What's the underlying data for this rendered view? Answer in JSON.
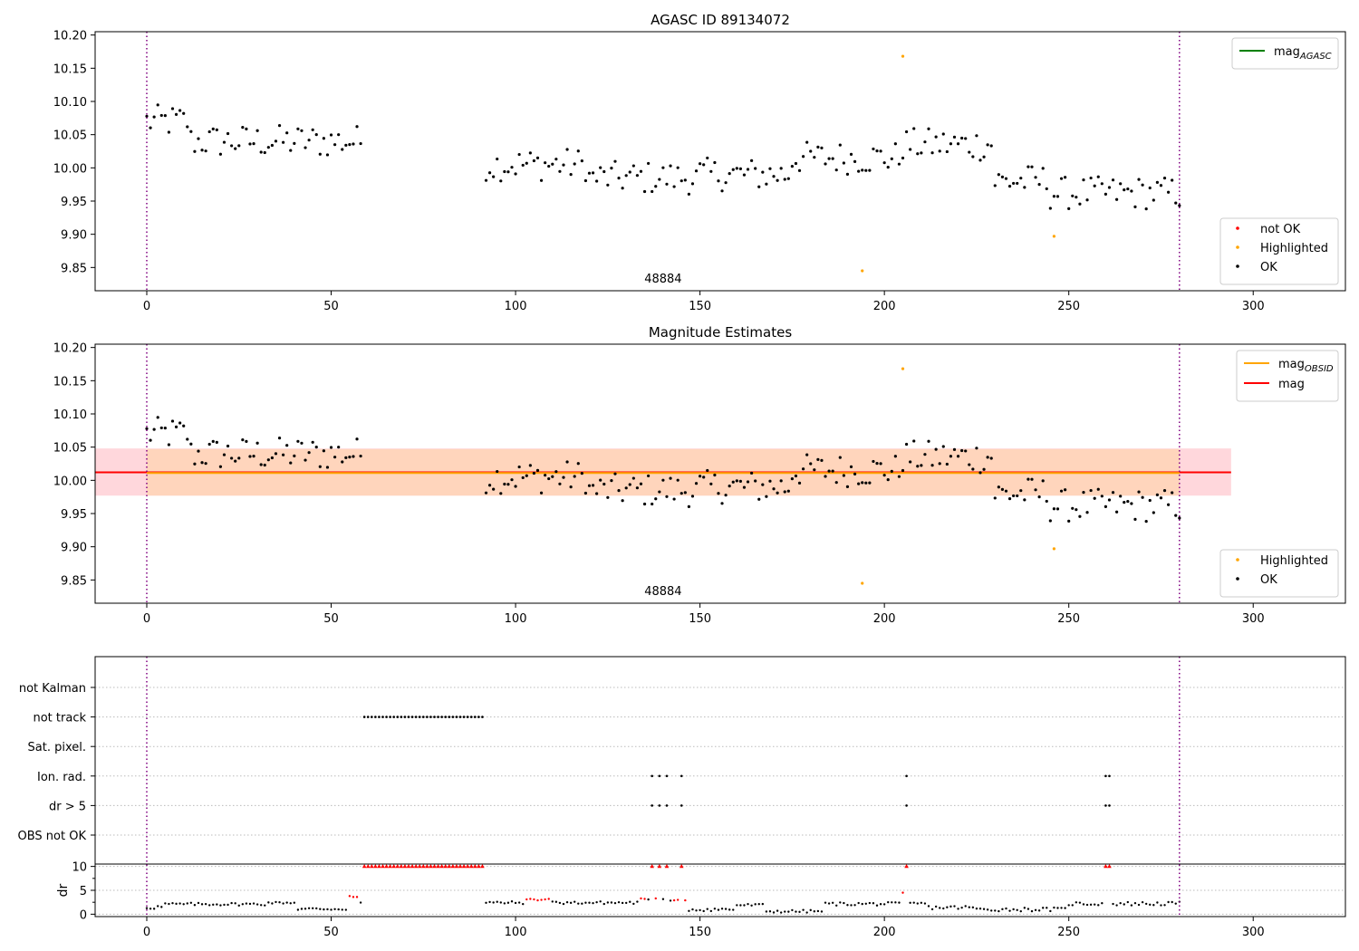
{
  "colors": {
    "ok": "#000000",
    "not_ok": "#ff0000",
    "highlighted": "#ffa500",
    "mag_agasc": "#008000",
    "mag_obsid": "#ffa500",
    "mag": "#ff0000",
    "band_outer": "#ffd7dc",
    "band_inner": "#ffd5bc",
    "boundary": "#800080",
    "grid": "#bbbbbb"
  },
  "chart_data": [
    {
      "type": "scatter",
      "title": "AGASC ID 89134072",
      "xlim": [
        -14,
        325
      ],
      "ylim": [
        9.815,
        10.205
      ],
      "xticks": [
        0,
        50,
        100,
        150,
        200,
        250,
        300
      ],
      "yticks": [
        9.85,
        9.9,
        9.95,
        10.0,
        10.05,
        10.1,
        10.15,
        10.2
      ],
      "ytick_labels": [
        "9.85",
        "9.90",
        "9.95",
        "10.00",
        "10.05",
        "10.10",
        "10.15",
        "10.20"
      ],
      "obsid_label": "48884",
      "obsid_label_x": 140,
      "boundaries": [
        0,
        280
      ],
      "legend_lines": [
        {
          "label": "mag",
          "sub": "AGASC",
          "color": "#008000"
        }
      ],
      "legend_points": [
        {
          "label": "not OK",
          "color": "#ff0000"
        },
        {
          "label": "Highlighted",
          "color": "#ffa500"
        },
        {
          "label": "OK",
          "color": "#000000"
        }
      ],
      "highlighted": [
        [
          194,
          9.845
        ],
        [
          205,
          10.168
        ],
        [
          246,
          9.897
        ]
      ]
    },
    {
      "type": "scatter",
      "title": "Magnitude Estimates",
      "xlim": [
        -14,
        325
      ],
      "ylim": [
        9.815,
        10.205
      ],
      "xticks": [
        0,
        50,
        100,
        150,
        200,
        250,
        300
      ],
      "yticks": [
        9.85,
        9.9,
        9.95,
        10.0,
        10.05,
        10.1,
        10.15,
        10.2
      ],
      "ytick_labels": [
        "9.85",
        "9.90",
        "9.95",
        "10.00",
        "10.05",
        "10.10",
        "10.15",
        "10.20"
      ],
      "obsid_label": "48884",
      "obsid_label_x": 140,
      "boundaries": [
        0,
        280
      ],
      "mag_mean": 10.012,
      "mag_obsid": 10.011,
      "band_outer": [
        9.977,
        10.048
      ],
      "band_inner": [
        9.977,
        10.047
      ],
      "band_outer_x": [
        -14,
        294
      ],
      "band_inner_x": [
        0,
        280
      ],
      "legend_lines": [
        {
          "label": "mag",
          "sub": "OBSID",
          "color": "#ffa500"
        },
        {
          "label": "mag",
          "sub": "",
          "color": "#ff0000"
        }
      ],
      "legend_points": [
        {
          "label": "Highlighted",
          "color": "#ffa500"
        },
        {
          "label": "OK",
          "color": "#000000"
        }
      ],
      "highlighted": [
        [
          194,
          9.845
        ],
        [
          205,
          10.168
        ],
        [
          246,
          9.897
        ]
      ]
    },
    {
      "type": "flags",
      "categories": [
        "not Kalman",
        "not track",
        "Sat. pixel.",
        "Ion. rad.",
        "dr > 5",
        "OBS not OK"
      ],
      "flags": {
        "not track": {
          "ranges": [
            [
              59,
              91
            ]
          ],
          "points": []
        },
        "Ion. rad.": {
          "ranges": [],
          "points": [
            137,
            139,
            141,
            145,
            206,
            260,
            261
          ]
        },
        "dr > 5": {
          "ranges": [],
          "points": [
            137,
            139,
            141,
            145,
            206,
            260,
            261
          ]
        }
      },
      "dr": {
        "ylabel": "dr",
        "ylim": [
          -0.5,
          10.5
        ],
        "yticks": [
          0,
          5,
          10
        ],
        "ytick_labels": [
          "0",
          "5",
          "10"
        ],
        "clipped_value": 10,
        "clipped_indices_ranges": [
          [
            59,
            91
          ]
        ],
        "clipped_indices": [
          137,
          139,
          141,
          145,
          206,
          260,
          261
        ],
        "red_points": [
          [
            55,
            3.8
          ],
          [
            56,
            3.6
          ],
          [
            57,
            3.6
          ],
          [
            103,
            3.1
          ],
          [
            104,
            3.2
          ],
          [
            105,
            3.1
          ],
          [
            106,
            2.9
          ],
          [
            107,
            3.0
          ],
          [
            108,
            3.1
          ],
          [
            109,
            3.2
          ],
          [
            134,
            3.3
          ],
          [
            135,
            3.2
          ],
          [
            138,
            3.3
          ],
          [
            143,
            2.9
          ],
          [
            144,
            3.0
          ],
          [
            146,
            2.9
          ],
          [
            205,
            4.5
          ]
        ]
      },
      "xlim": [
        -14,
        325
      ],
      "xticks": [
        0,
        50,
        100,
        150,
        200,
        250,
        300
      ],
      "boundaries": [
        0,
        280
      ]
    }
  ]
}
